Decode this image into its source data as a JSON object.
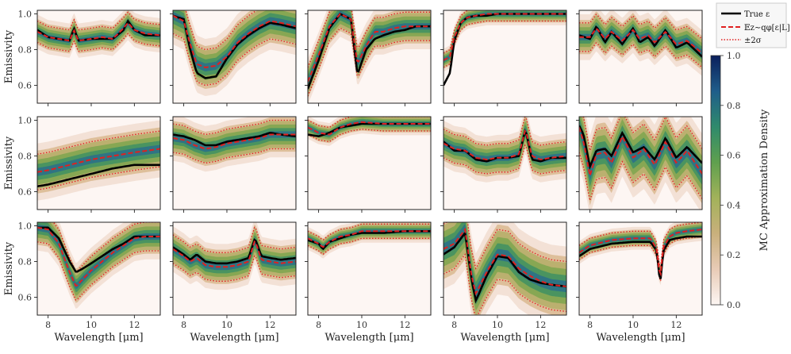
{
  "chart_data": {
    "type": "line",
    "layout": "3x5 grid of subplots with shared axes",
    "xlabel": "Wavelength [μm]",
    "ylabel": "Emissivity",
    "xlim": [
      7.5,
      13.2
    ],
    "ylim": [
      0.5,
      1.02
    ],
    "xticks": [
      8,
      10,
      12
    ],
    "yticks": [
      0.6,
      0.8,
      1.0
    ],
    "ytick_labels": [
      "0.6",
      "0.8",
      "1.0"
    ],
    "legend": {
      "placement": "top-right",
      "entries": [
        {
          "label": "True ε",
          "style": "solid",
          "color": "#000000"
        },
        {
          "label": "𝔼z∼qφ[ε|L]",
          "style": "dashed",
          "color": "#e02020"
        },
        {
          "label": "±2σ",
          "style": "dotted",
          "color": "#e02020"
        }
      ]
    },
    "colorbar": {
      "label": "MC Approximation Density",
      "ticks": [
        0.0,
        0.2,
        0.4,
        0.6,
        0.8,
        1.0
      ],
      "tick_labels": [
        "0.0",
        "0.2",
        "0.4",
        "0.6",
        "0.8",
        "1.0"
      ],
      "colors": [
        "#fdf6f3",
        "#e8cbb6",
        "#c9b07c",
        "#a2b25a",
        "#5fa04e",
        "#2f8a6c",
        "#1f5d8a",
        "#0b1f5c"
      ]
    },
    "panels": [
      {
        "x": [
          7.5,
          8,
          8.5,
          9,
          9.2,
          9.4,
          10,
          10.5,
          11,
          11.5,
          11.7,
          12,
          12.5,
          13.2
        ],
        "true": [
          0.91,
          0.87,
          0.86,
          0.85,
          0.92,
          0.85,
          0.86,
          0.86,
          0.86,
          0.91,
          0.96,
          0.91,
          0.88,
          0.88
        ],
        "mean": [
          0.9,
          0.87,
          0.86,
          0.85,
          0.91,
          0.85,
          0.86,
          0.87,
          0.86,
          0.92,
          0.95,
          0.91,
          0.89,
          0.88
        ],
        "sd": 0.03
      },
      {
        "x": [
          7.5,
          8,
          8.3,
          8.6,
          9,
          9.5,
          10,
          10.5,
          11,
          11.5,
          12,
          12.5,
          13.2
        ],
        "true": [
          0.99,
          0.97,
          0.8,
          0.67,
          0.64,
          0.65,
          0.75,
          0.83,
          0.88,
          0.92,
          0.95,
          0.94,
          0.92
        ],
        "mean": [
          0.99,
          0.96,
          0.83,
          0.72,
          0.7,
          0.71,
          0.76,
          0.84,
          0.89,
          0.93,
          0.96,
          0.95,
          0.93
        ],
        "sd": 0.05
      },
      {
        "x": [
          7.5,
          8,
          8.5,
          9,
          9.5,
          9.8,
          10.2,
          10.6,
          11,
          11.5,
          12,
          12.5,
          13.2
        ],
        "true": [
          0.58,
          0.74,
          0.92,
          1.0,
          0.97,
          0.66,
          0.8,
          0.86,
          0.88,
          0.9,
          0.91,
          0.93,
          0.93
        ],
        "mean": [
          0.62,
          0.77,
          0.93,
          1.0,
          0.97,
          0.72,
          0.82,
          0.9,
          0.9,
          0.92,
          0.93,
          0.93,
          0.93
        ],
        "sd": 0.04
      },
      {
        "x": [
          7.5,
          7.8,
          8,
          8.3,
          8.6,
          9,
          9.5,
          10,
          11,
          12,
          13.2
        ],
        "true": [
          0.6,
          0.67,
          0.85,
          0.95,
          0.98,
          0.99,
          0.99,
          1.0,
          1.0,
          1.0,
          1.0
        ],
        "mean": [
          0.74,
          0.76,
          0.87,
          0.95,
          0.98,
          0.99,
          1.0,
          1.0,
          1.0,
          1.0,
          1.0
        ],
        "sd": 0.02
      },
      {
        "x": [
          7.5,
          8,
          8.3,
          8.7,
          9,
          9.5,
          10,
          10.3,
          10.7,
          11,
          11.5,
          12,
          12.5,
          13.2
        ],
        "true": [
          0.88,
          0.86,
          0.93,
          0.84,
          0.9,
          0.83,
          0.92,
          0.84,
          0.87,
          0.82,
          0.91,
          0.81,
          0.84,
          0.76
        ],
        "mean": [
          0.87,
          0.87,
          0.92,
          0.86,
          0.9,
          0.85,
          0.91,
          0.86,
          0.88,
          0.84,
          0.9,
          0.83,
          0.85,
          0.78
        ],
        "sd": 0.04
      },
      {
        "x": [
          7.5,
          8,
          9,
          10,
          11,
          12,
          13.2
        ],
        "true": [
          0.63,
          0.64,
          0.67,
          0.7,
          0.73,
          0.75,
          0.75
        ],
        "mean": [
          0.71,
          0.72,
          0.75,
          0.78,
          0.8,
          0.82,
          0.84
        ],
        "sd": 0.05
      },
      {
        "x": [
          7.5,
          8,
          8.5,
          9,
          9.5,
          10,
          10.5,
          11,
          11.5,
          12,
          12.5,
          13.2
        ],
        "true": [
          0.92,
          0.91,
          0.89,
          0.86,
          0.86,
          0.88,
          0.89,
          0.9,
          0.91,
          0.93,
          0.92,
          0.91
        ],
        "mean": [
          0.9,
          0.89,
          0.86,
          0.84,
          0.85,
          0.87,
          0.88,
          0.89,
          0.9,
          0.92,
          0.92,
          0.92
        ],
        "sd": 0.04
      },
      {
        "x": [
          7.5,
          8,
          8.5,
          9,
          9.5,
          10,
          11,
          12,
          13.2
        ],
        "true": [
          0.92,
          0.91,
          0.93,
          0.96,
          0.97,
          0.98,
          0.98,
          0.98,
          0.98
        ],
        "mean": [
          0.96,
          0.93,
          0.92,
          0.96,
          0.98,
          0.99,
          0.98,
          0.98,
          0.98
        ],
        "sd": 0.02
      },
      {
        "x": [
          7.5,
          8,
          8.5,
          9,
          9.5,
          10,
          10.5,
          11,
          11.3,
          11.6,
          12,
          12.5,
          13.2
        ],
        "true": [
          0.88,
          0.83,
          0.83,
          0.78,
          0.77,
          0.79,
          0.79,
          0.8,
          0.95,
          0.78,
          0.77,
          0.79,
          0.79
        ],
        "mean": [
          0.87,
          0.84,
          0.83,
          0.79,
          0.78,
          0.79,
          0.79,
          0.81,
          0.95,
          0.8,
          0.78,
          0.79,
          0.8
        ],
        "sd": 0.04
      },
      {
        "x": [
          7.5,
          7.7,
          8,
          8.3,
          8.7,
          9,
          9.5,
          10,
          10.5,
          11,
          11.5,
          12,
          12.5,
          13.2
        ],
        "true": [
          0.97,
          0.92,
          0.74,
          0.83,
          0.84,
          0.8,
          0.93,
          0.82,
          0.85,
          0.78,
          0.9,
          0.79,
          0.85,
          0.76
        ],
        "mean": [
          0.96,
          0.88,
          0.69,
          0.81,
          0.82,
          0.76,
          0.91,
          0.79,
          0.84,
          0.75,
          0.88,
          0.76,
          0.83,
          0.7
        ],
        "sd": 0.07
      },
      {
        "x": [
          7.5,
          8,
          8.5,
          9,
          9.3,
          9.6,
          10,
          10.5,
          11,
          11.5,
          12,
          12.5,
          13.2
        ],
        "true": [
          0.99,
          0.99,
          0.93,
          0.8,
          0.74,
          0.76,
          0.79,
          0.83,
          0.87,
          0.9,
          0.94,
          0.94,
          0.94
        ],
        "mean": [
          0.99,
          0.98,
          0.9,
          0.74,
          0.66,
          0.7,
          0.75,
          0.8,
          0.85,
          0.89,
          0.93,
          0.94,
          0.94
        ],
        "sd": 0.04
      },
      {
        "x": [
          7.5,
          8,
          8.3,
          8.6,
          9,
          9.5,
          10,
          10.5,
          11,
          11.3,
          11.6,
          12,
          12.5,
          13.2
        ],
        "true": [
          0.88,
          0.84,
          0.81,
          0.84,
          0.8,
          0.79,
          0.79,
          0.8,
          0.82,
          0.93,
          0.83,
          0.82,
          0.81,
          0.82
        ],
        "mean": [
          0.87,
          0.83,
          0.8,
          0.82,
          0.78,
          0.77,
          0.77,
          0.78,
          0.8,
          0.92,
          0.81,
          0.8,
          0.79,
          0.8
        ],
        "sd": 0.04
      },
      {
        "x": [
          7.5,
          8,
          8.2,
          8.5,
          9,
          9.5,
          10,
          11,
          12,
          13.2
        ],
        "true": [
          0.92,
          0.9,
          0.87,
          0.91,
          0.93,
          0.95,
          0.96,
          0.96,
          0.97,
          0.97
        ],
        "mean": [
          0.93,
          0.9,
          0.88,
          0.91,
          0.94,
          0.95,
          0.97,
          0.97,
          0.97,
          0.97
        ],
        "sd": 0.02
      },
      {
        "x": [
          7.5,
          8,
          8.5,
          8.8,
          9,
          9.5,
          10,
          10.5,
          11,
          11.5,
          12,
          12.5,
          13.2
        ],
        "true": [
          0.84,
          0.88,
          0.96,
          0.7,
          0.58,
          0.72,
          0.83,
          0.82,
          0.74,
          0.7,
          0.68,
          0.67,
          0.66
        ],
        "mean": [
          0.87,
          0.9,
          0.98,
          0.72,
          0.62,
          0.74,
          0.84,
          0.83,
          0.76,
          0.72,
          0.69,
          0.67,
          0.66
        ],
        "sd": 0.07
      },
      {
        "x": [
          7.5,
          8,
          9,
          10,
          10.8,
          11.1,
          11.25,
          11.4,
          11.7,
          12,
          12.5,
          13.2
        ],
        "true": [
          0.83,
          0.87,
          0.9,
          0.91,
          0.91,
          0.86,
          0.67,
          0.86,
          0.92,
          0.93,
          0.94,
          0.94
        ],
        "mean": [
          0.85,
          0.89,
          0.92,
          0.93,
          0.93,
          0.87,
          0.7,
          0.88,
          0.94,
          0.96,
          0.97,
          0.98
        ],
        "sd": 0.02
      }
    ]
  }
}
